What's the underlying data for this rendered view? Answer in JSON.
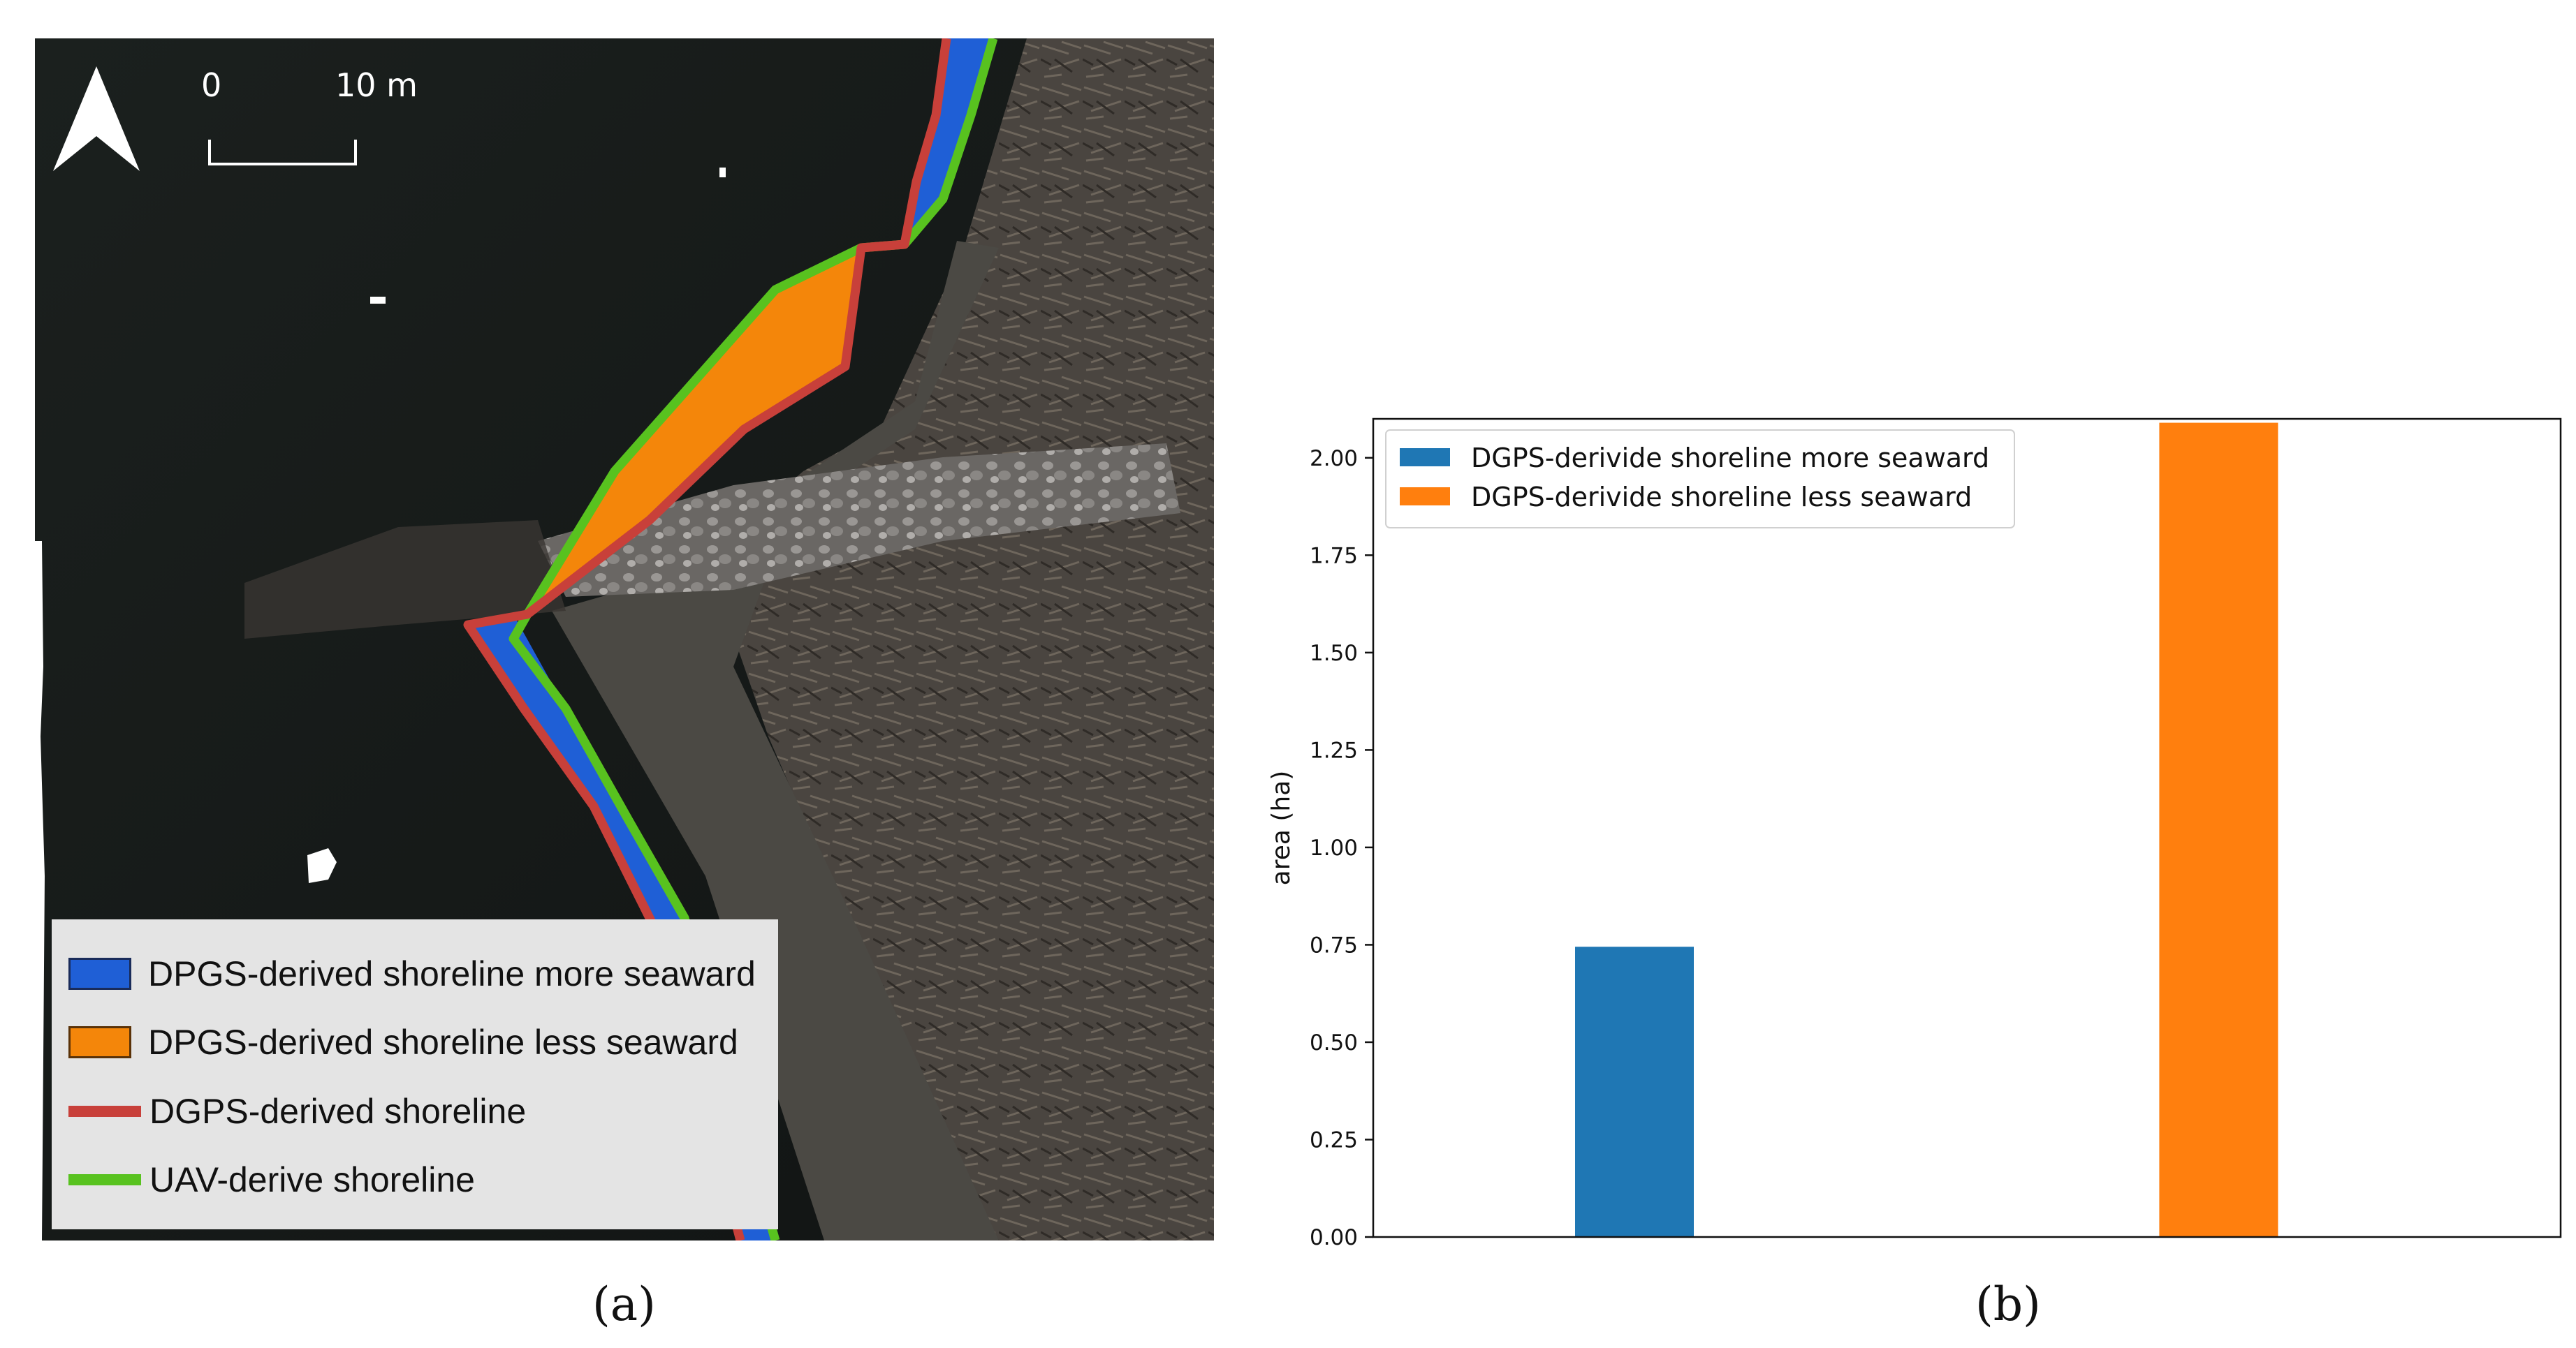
{
  "panel_a": {
    "caption": "(a)",
    "scale_bar": {
      "start": "0",
      "end": "10 m"
    },
    "legend": [
      {
        "label": "DPGS-derived shoreline more seaward",
        "color": "#1f5fd6",
        "kind": "patch"
      },
      {
        "label": "DPGS-derived shoreline less seaward",
        "color": "#f4860a",
        "kind": "patch"
      },
      {
        "label": "DGPS-derived shoreline",
        "color": "#c8403a",
        "kind": "line"
      },
      {
        "label": "UAV-derive shoreline",
        "color": "#58c21f",
        "kind": "line"
      }
    ]
  },
  "panel_b": {
    "caption": "(b)"
  },
  "chart_data": {
    "type": "bar",
    "categories": [
      "",
      ""
    ],
    "series": [
      {
        "name": "DGPS-derivide shoreline more seaward",
        "values": [
          0.745,
          null
        ],
        "color": "#1f77b4"
      },
      {
        "name": "DGPS-derivide shoreline less seaward",
        "values": [
          null,
          2.09
        ],
        "color": "#ff7f0e"
      }
    ],
    "title": "",
    "xlabel": "",
    "ylabel": "area (ha)",
    "ylim": [
      0,
      2.1
    ],
    "yticks": [
      "0.00",
      "0.25",
      "0.50",
      "0.75",
      "1.00",
      "1.25",
      "1.50",
      "1.75",
      "2.00"
    ],
    "grid": false,
    "legend_position": "upper-left"
  }
}
